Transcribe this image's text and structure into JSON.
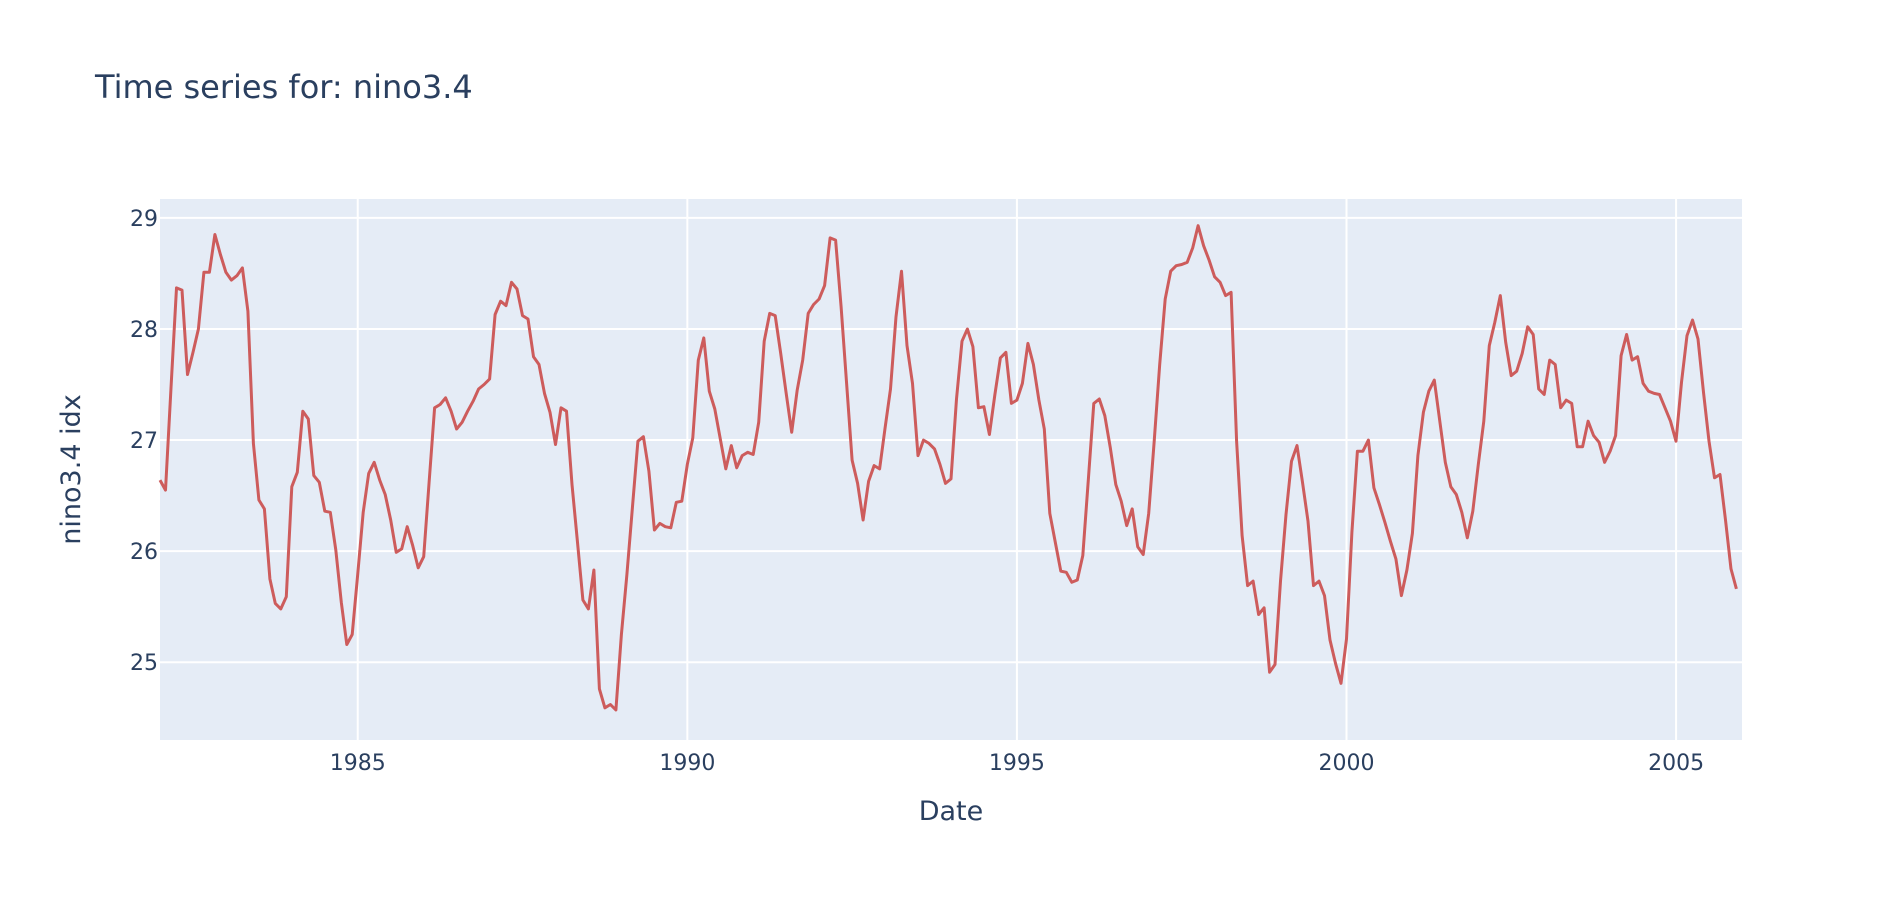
{
  "chart_data": {
    "type": "line",
    "title": "Time series for: nino3.4",
    "xlabel": "Date",
    "ylabel": "nino3.4 idx",
    "xlim": [
      1982.0,
      2006.0
    ],
    "ylim": [
      24.3,
      29.17
    ],
    "grid": true,
    "x_ticks": [
      1985,
      1990,
      1995,
      2000,
      2005
    ],
    "x_tick_labels": [
      "1985",
      "1990",
      "1995",
      "2000",
      "2005"
    ],
    "y_ticks": [
      25,
      26,
      27,
      28,
      29
    ],
    "y_tick_labels": [
      "25",
      "26",
      "27",
      "28",
      "29"
    ],
    "colors": {
      "line": "#cd5c5c",
      "plot_bg": "#e5ecf6",
      "grid": "#ffffff",
      "text": "#2a3f5f"
    },
    "series": [
      {
        "name": "nino3.4",
        "start_year": 1982.0,
        "step": 0.08333,
        "values": [
          26.64,
          26.55,
          27.47,
          28.37,
          28.35,
          27.59,
          27.79,
          28.0,
          28.51,
          28.51,
          28.85,
          28.67,
          28.51,
          28.44,
          28.48,
          28.55,
          28.16,
          26.97,
          26.46,
          26.38,
          25.75,
          25.53,
          25.48,
          25.59,
          26.58,
          26.71,
          27.26,
          27.19,
          26.68,
          26.62,
          26.36,
          26.35,
          26.01,
          25.54,
          25.16,
          25.25,
          25.79,
          26.35,
          26.7,
          26.8,
          26.64,
          26.51,
          26.28,
          25.99,
          26.02,
          26.22,
          26.05,
          25.85,
          25.95,
          26.62,
          27.29,
          27.32,
          27.38,
          27.26,
          27.1,
          27.16,
          27.26,
          27.35,
          27.46,
          27.5,
          27.55,
          28.13,
          28.25,
          28.21,
          28.42,
          28.36,
          28.12,
          28.09,
          27.75,
          27.68,
          27.42,
          27.25,
          26.96,
          27.29,
          27.26,
          26.6,
          26.08,
          25.56,
          25.48,
          25.83,
          24.76,
          24.59,
          24.62,
          24.57,
          25.25,
          25.79,
          26.39,
          26.99,
          27.03,
          26.72,
          26.19,
          26.25,
          26.22,
          26.21,
          26.44,
          26.45,
          26.78,
          27.02,
          27.72,
          27.92,
          27.44,
          27.28,
          27.01,
          26.74,
          26.95,
          26.75,
          26.86,
          26.89,
          26.87,
          27.16,
          27.89,
          28.14,
          28.12,
          27.78,
          27.42,
          27.07,
          27.45,
          27.72,
          28.14,
          28.22,
          28.27,
          28.39,
          28.82,
          28.8,
          28.2,
          27.51,
          26.82,
          26.61,
          26.28,
          26.63,
          26.77,
          26.74,
          27.11,
          27.46,
          28.11,
          28.52,
          27.85,
          27.51,
          26.86,
          27.0,
          26.97,
          26.92,
          26.78,
          26.61,
          26.65,
          27.37,
          27.89,
          28.0,
          27.84,
          27.29,
          27.3,
          27.05,
          27.41,
          27.74,
          27.79,
          27.33,
          27.36,
          27.51,
          27.87,
          27.68,
          27.36,
          27.1,
          26.34,
          26.08,
          25.82,
          25.81,
          25.72,
          25.74,
          25.96,
          26.64,
          27.33,
          27.37,
          27.22,
          26.93,
          26.6,
          26.45,
          26.23,
          26.38,
          26.04,
          25.97,
          26.34,
          26.99,
          27.68,
          28.27,
          28.52,
          28.57,
          28.58,
          28.6,
          28.73,
          28.93,
          28.75,
          28.62,
          28.47,
          28.42,
          28.3,
          28.33,
          26.99,
          26.14,
          25.69,
          25.73,
          25.43,
          25.49,
          24.91,
          24.98,
          25.73,
          26.33,
          26.81,
          26.95,
          26.62,
          26.27,
          25.69,
          25.73,
          25.6,
          25.2,
          24.99,
          24.81,
          25.21,
          26.17,
          26.9,
          26.9,
          27.0,
          26.57,
          26.42,
          26.26,
          26.09,
          25.93,
          25.6,
          25.83,
          26.16,
          26.86,
          27.25,
          27.44,
          27.54,
          27.17,
          26.8,
          26.58,
          26.51,
          26.35,
          26.12,
          26.36,
          26.78,
          27.17,
          27.85,
          28.06,
          28.3,
          27.88,
          27.58,
          27.62,
          27.78,
          28.02,
          27.95,
          27.46,
          27.41,
          27.72,
          27.68,
          27.29,
          27.36,
          27.33,
          26.94,
          26.94,
          27.17,
          27.04,
          26.98,
          26.8,
          26.9,
          27.04,
          27.76,
          27.95,
          27.72,
          27.75,
          27.51,
          27.44,
          27.42,
          27.41,
          27.29,
          27.17,
          26.99,
          27.52,
          27.94,
          28.08,
          27.91,
          27.43,
          26.99,
          26.66,
          26.69,
          26.28,
          25.84,
          25.66
        ]
      }
    ]
  }
}
